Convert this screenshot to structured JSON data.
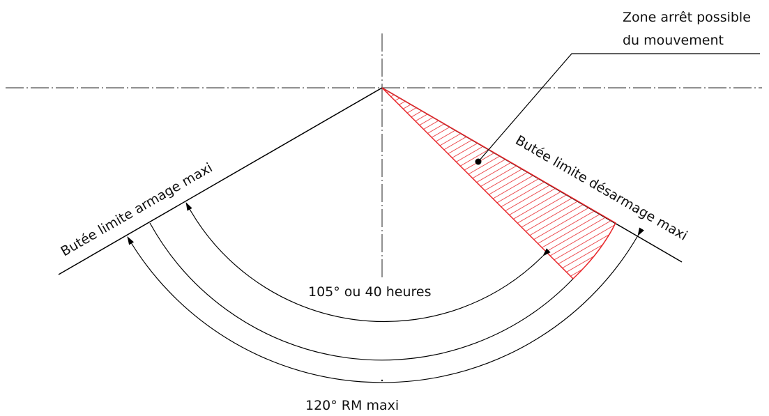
{
  "labels": {
    "zone_line1": "Zone arrêt possible",
    "zone_line2": "du mouvement",
    "butee_armage": "Butée limite armage maxi",
    "butee_desarmage": "Butée limite désarmage maxi",
    "inner_arc": "105° ou 40 heures",
    "outer_arc": "120° RM maxi"
  },
  "colors": {
    "hatch": "#e8262a",
    "line": "#000000"
  }
}
